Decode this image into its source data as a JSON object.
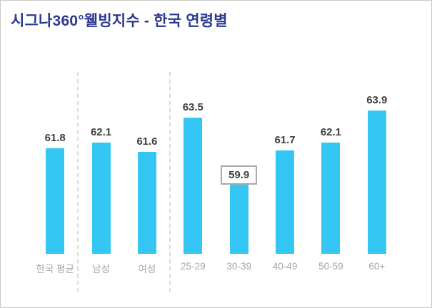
{
  "title": "시그나360°웰빙지수  - 한국 연령별",
  "colors": {
    "title_text": "#2b3990",
    "bar": "#35c7f3",
    "value_label": "#3f3f3f",
    "axis_label": "#a6a6a6",
    "separator": "#dcdcdc"
  },
  "chart_data": {
    "type": "bar",
    "title": "시그나360°웰빙지수 - 한국 연령별",
    "categories": [
      "한국 평균",
      "남성",
      "여성",
      "25-29",
      "30-39",
      "40-49",
      "50-59",
      "60+"
    ],
    "values": [
      61.8,
      62.1,
      61.6,
      63.5,
      59.9,
      61.7,
      62.1,
      63.9
    ],
    "xlabel": "",
    "ylabel": "",
    "ylim": [
      56,
      66
    ],
    "grid": false,
    "legend": false,
    "bar_color": "#35c7f3",
    "boxed_value_index": 4,
    "separators_after_category_index": [
      0,
      2
    ],
    "value_labels_shown": true,
    "y_axis_shown": false
  }
}
